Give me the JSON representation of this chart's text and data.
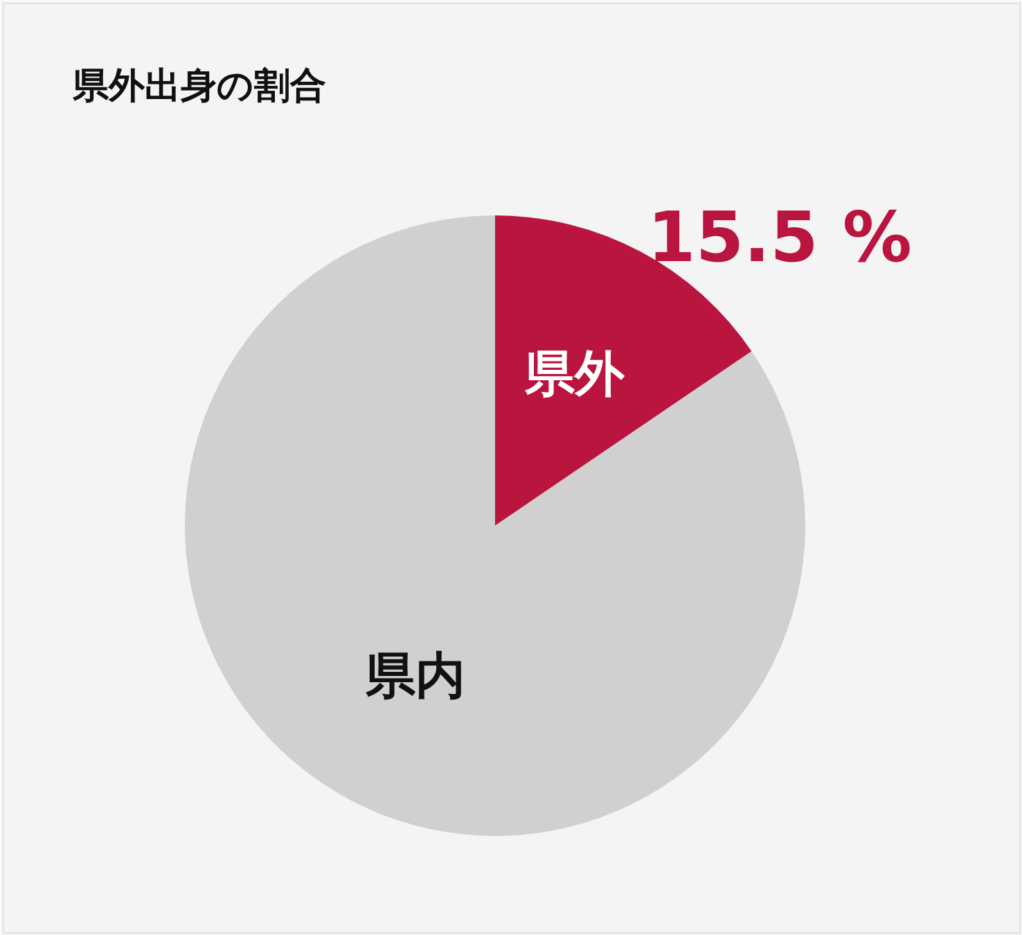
{
  "chart_data": {
    "type": "pie",
    "title": "県外出身の割合",
    "categories": [
      "県外",
      "県内"
    ],
    "values": [
      15.5,
      84.5
    ],
    "colors": [
      "#b9153f",
      "#d0d0d0"
    ],
    "value_labels": [
      "15.5 %",
      null
    ]
  }
}
